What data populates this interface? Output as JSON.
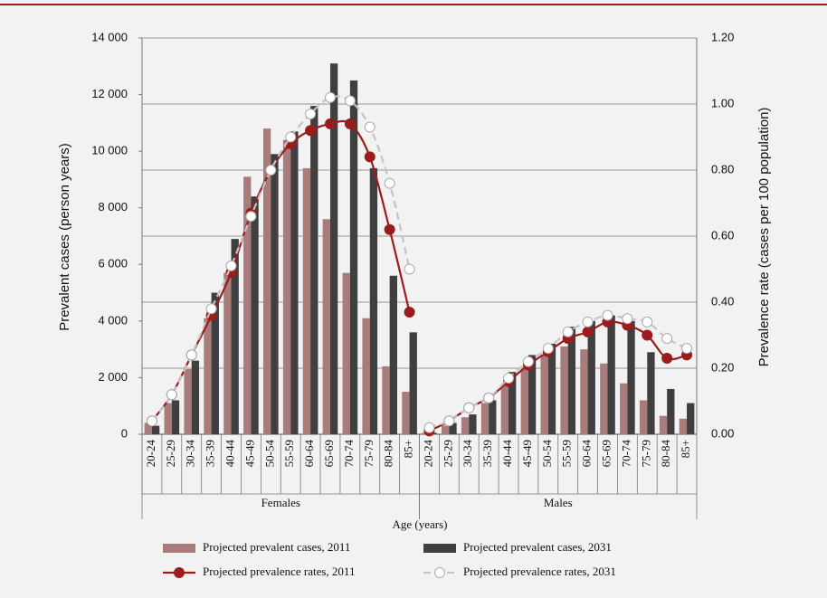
{
  "chart_data": {
    "type": "bar",
    "ylabel": "Prevalent cases (person years)",
    "y2label": "Prevalence rate (cases per 100 population)",
    "xlabel": "Age (years)",
    "ylim": [
      0,
      14000
    ],
    "yticks": [
      0,
      {
        "value": 2000,
        "label": "2 000"
      },
      {
        "value": 4000,
        "label": "4 000"
      },
      {
        "value": 6000,
        "label": "6 000"
      },
      {
        "value": 8000,
        "label": "8 000"
      },
      {
        "value": 10000,
        "label": "10 000"
      },
      {
        "value": 12000,
        "label": "12 000"
      },
      {
        "value": 14000,
        "label": "14 000"
      }
    ],
    "y2lim": [
      0,
      1.2
    ],
    "y2ticks": [
      {
        "value": 0,
        "label": "0.00"
      },
      {
        "value": 0.2,
        "label": "0.20"
      },
      {
        "value": 0.4,
        "label": "0.40"
      },
      {
        "value": 0.6,
        "label": "0.60"
      },
      {
        "value": 0.8,
        "label": "0.80"
      },
      {
        "value": 1.0,
        "label": "1.00"
      },
      {
        "value": 1.2,
        "label": "1.20"
      }
    ],
    "grid": true,
    "series": [
      {
        "name": "Projected prevalent cases, 2011",
        "color": "#a97c7c",
        "style": "bar"
      },
      {
        "name": "Projected prevalent cases, 2031",
        "color": "#3f3f3f",
        "style": "bar"
      },
      {
        "name": "Projected prevalence rates, 2011",
        "color": "#9b1c1c",
        "style": "line",
        "axis": "y2"
      },
      {
        "name": "Projected prevalence rates, 2031",
        "color": "#c4c4c4",
        "style": "dashed-line",
        "axis": "y2"
      }
    ],
    "groups": [
      {
        "name": "Females",
        "categories": [
          "20-24",
          "25-29",
          "30-34",
          "35-39",
          "40-44",
          "45-49",
          "50-54",
          "55-59",
          "60-64",
          "65-69",
          "70-74",
          "75-79",
          "80-84",
          "85+"
        ],
        "values": [
          [
            400,
            1100,
            2300,
            4100,
            5700,
            9100,
            10800,
            10400,
            9400,
            7600,
            5700,
            4100,
            2400,
            1500
          ],
          [
            300,
            1200,
            2600,
            5000,
            6900,
            8400,
            9900,
            10700,
            11600,
            13100,
            12500,
            9400,
            5600,
            3600
          ],
          [
            0.04,
            0.12,
            0.24,
            0.36,
            0.49,
            0.67,
            0.8,
            0.88,
            0.92,
            0.94,
            0.94,
            0.84,
            0.62,
            0.37
          ],
          [
            0.04,
            0.12,
            0.24,
            0.38,
            0.51,
            0.66,
            0.8,
            0.9,
            0.97,
            1.02,
            1.01,
            0.93,
            0.76,
            0.5
          ]
        ]
      },
      {
        "name": "Males",
        "categories": [
          "20-24",
          "25-29",
          "30-34",
          "35-39",
          "40-44",
          "45-49",
          "50-54",
          "55-59",
          "60-64",
          "65-69",
          "70-74",
          "75-79",
          "80-84",
          "85+"
        ],
        "values": [
          [
            50,
            300,
            600,
            1100,
            1700,
            2300,
            2800,
            3100,
            3000,
            2500,
            1800,
            1200,
            650,
            550
          ],
          [
            50,
            400,
            700,
            1200,
            2200,
            2800,
            3200,
            3800,
            4000,
            4200,
            4000,
            2900,
            1600,
            1100
          ],
          [
            0.01,
            0.04,
            0.08,
            0.11,
            0.16,
            0.21,
            0.25,
            0.29,
            0.31,
            0.34,
            0.33,
            0.3,
            0.23,
            0.24
          ],
          [
            0.02,
            0.04,
            0.08,
            0.11,
            0.17,
            0.22,
            0.26,
            0.31,
            0.34,
            0.36,
            0.35,
            0.34,
            0.29,
            0.26
          ]
        ]
      }
    ]
  }
}
